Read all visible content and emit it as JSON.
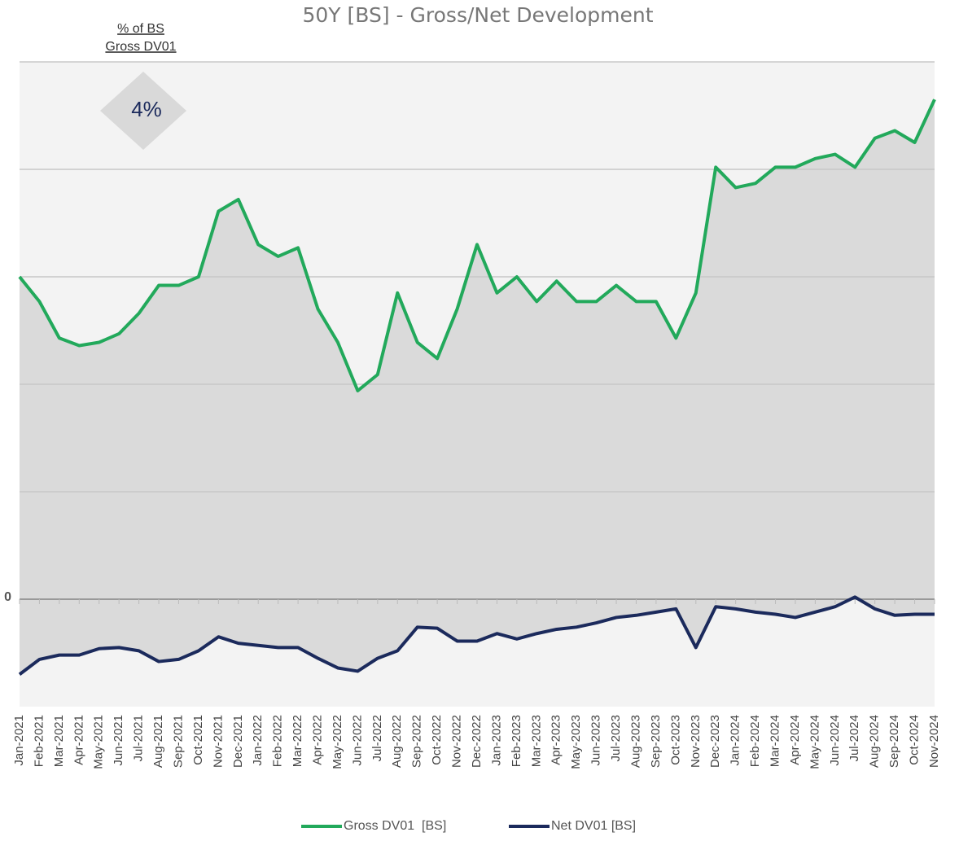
{
  "chart_data": {
    "type": "line",
    "title": "50Y [BS] - Gross/Net Development",
    "annotation_lines": [
      "% of BS",
      "Gross DV01"
    ],
    "annotation_value": "4%",
    "categories": [
      "Jan-2021",
      "Feb-2021",
      "Mar-2021",
      "Apr-2021",
      "May-2021",
      "Jun-2021",
      "Jul-2021",
      "Aug-2021",
      "Sep-2021",
      "Oct-2021",
      "Nov-2021",
      "Dec-2021",
      "Jan-2022",
      "Feb-2022",
      "Mar-2022",
      "Apr-2022",
      "May-2022",
      "Jun-2022",
      "Jul-2022",
      "Aug-2022",
      "Sep-2022",
      "Oct-2022",
      "Nov-2022",
      "Dec-2022",
      "Jan-2023",
      "Feb-2023",
      "Mar-2023",
      "Apr-2023",
      "May-2023",
      "Jun-2023",
      "Jul-2023",
      "Aug-2023",
      "Sep-2023",
      "Oct-2023",
      "Nov-2023",
      "Dec-2023",
      "Jan-2024",
      "Feb-2024",
      "Mar-2024",
      "Apr-2024",
      "May-2024",
      "Jun-2024",
      "Jul-2024",
      "Aug-2024",
      "Sep-2024",
      "Oct-2024",
      "Nov-2024"
    ],
    "series": [
      {
        "name": "Gross DV01  [BS]",
        "color": "#22a95b",
        "values": [
          3.0,
          2.77,
          2.43,
          2.36,
          2.39,
          2.47,
          2.66,
          2.92,
          2.92,
          3.0,
          3.61,
          3.72,
          3.3,
          3.19,
          3.27,
          2.7,
          2.39,
          1.94,
          2.09,
          2.85,
          2.39,
          2.24,
          2.7,
          3.3,
          2.85,
          3.0,
          2.77,
          2.96,
          2.77,
          2.77,
          2.92,
          2.77,
          2.77,
          2.43,
          2.85,
          4.02,
          3.83,
          3.87,
          4.02,
          4.02,
          4.1,
          4.14,
          4.02,
          4.29,
          4.36,
          4.25,
          4.65
        ]
      },
      {
        "name": "Net DV01 [BS]",
        "color": "#1b2a5c",
        "values": [
          -0.7,
          -0.56,
          -0.52,
          -0.52,
          -0.46,
          -0.45,
          -0.48,
          -0.58,
          -0.56,
          -0.48,
          -0.35,
          -0.41,
          -0.43,
          -0.45,
          -0.45,
          -0.55,
          -0.64,
          -0.67,
          -0.55,
          -0.48,
          -0.26,
          -0.27,
          -0.39,
          -0.39,
          -0.32,
          -0.37,
          -0.32,
          -0.28,
          -0.26,
          -0.22,
          -0.17,
          -0.15,
          -0.12,
          -0.09,
          -0.45,
          -0.07,
          -0.09,
          -0.12,
          -0.14,
          -0.17,
          -0.12,
          -0.07,
          0.02,
          -0.09,
          -0.15,
          -0.14,
          -0.14
        ]
      }
    ],
    "ylim": [
      -1,
      5
    ],
    "yticks": [
      0
    ],
    "grid_lines": [
      1,
      2,
      3,
      4,
      5
    ],
    "grid": true,
    "legend": "bottom"
  }
}
